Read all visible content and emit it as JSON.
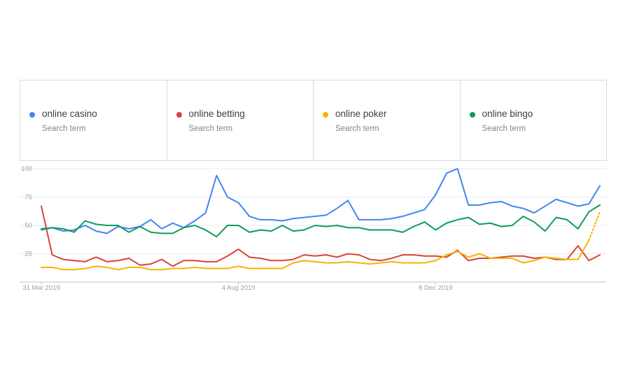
{
  "legend": [
    {
      "term": "online casino",
      "sub": "Search term",
      "color": "#4285f4"
    },
    {
      "term": "online betting",
      "sub": "Search term",
      "color": "#db4437"
    },
    {
      "term": "online poker",
      "sub": "Search term",
      "color": "#f4b400"
    },
    {
      "term": "online bingo",
      "sub": "Search term",
      "color": "#0f9d58"
    }
  ],
  "chart_data": {
    "type": "line",
    "ylim": [
      0,
      100
    ],
    "y_ticks": [
      "100",
      "75",
      "50",
      "25"
    ],
    "x_ticks": [
      {
        "label": "31 Mar 2019",
        "index": 0
      },
      {
        "label": "4 Aug 2019",
        "index": 18
      },
      {
        "label": "8 Dec 2019",
        "index": 36
      }
    ],
    "grid": true,
    "series": [
      {
        "name": "online casino",
        "color": "#4285f4",
        "values": [
          46,
          48,
          45,
          46,
          50,
          45,
          43,
          49,
          47,
          49,
          55,
          47,
          52,
          48,
          54,
          61,
          94,
          75,
          70,
          58,
          55,
          55,
          54,
          56,
          57,
          58,
          59,
          65,
          72,
          55,
          55,
          55,
          56,
          58,
          61,
          64,
          77,
          96,
          100,
          68,
          68,
          70,
          71,
          67,
          65,
          61,
          67,
          73,
          70,
          67,
          69,
          85
        ]
      },
      {
        "name": "online betting",
        "color": "#db4437",
        "values": [
          67,
          24,
          20,
          19,
          18,
          22,
          18,
          19,
          21,
          15,
          16,
          20,
          14,
          19,
          19,
          18,
          18,
          23,
          29,
          22,
          21,
          19,
          19,
          20,
          24,
          23,
          24,
          22,
          25,
          24,
          20,
          19,
          21,
          24,
          24,
          23,
          23,
          22,
          28,
          19,
          21,
          21,
          22,
          23,
          23,
          21,
          22,
          20,
          20,
          32,
          19,
          24
        ]
      },
      {
        "name": "online poker",
        "color": "#f4b400",
        "values": [
          13,
          13,
          11,
          11,
          12,
          14,
          13,
          11,
          13,
          13,
          11,
          11,
          12,
          12,
          13,
          12,
          12,
          12,
          14,
          12,
          12,
          12,
          12,
          17,
          19,
          18,
          17,
          17,
          18,
          17,
          16,
          17,
          18,
          17,
          17,
          17,
          19,
          24,
          27,
          22,
          25,
          21,
          21,
          21,
          17,
          19,
          22,
          21,
          20,
          20,
          37,
          62
        ],
        "dashed_from_index": 50
      },
      {
        "name": "online bingo",
        "color": "#0f9d58",
        "values": [
          47,
          48,
          47,
          44,
          54,
          51,
          50,
          50,
          44,
          49,
          44,
          43,
          43,
          48,
          50,
          46,
          40,
          50,
          50,
          44,
          46,
          45,
          50,
          45,
          46,
          50,
          49,
          50,
          48,
          48,
          46,
          46,
          46,
          44,
          49,
          53,
          46,
          52,
          55,
          57,
          51,
          52,
          49,
          50,
          58,
          53,
          45,
          57,
          55,
          47,
          62,
          68
        ]
      }
    ]
  }
}
